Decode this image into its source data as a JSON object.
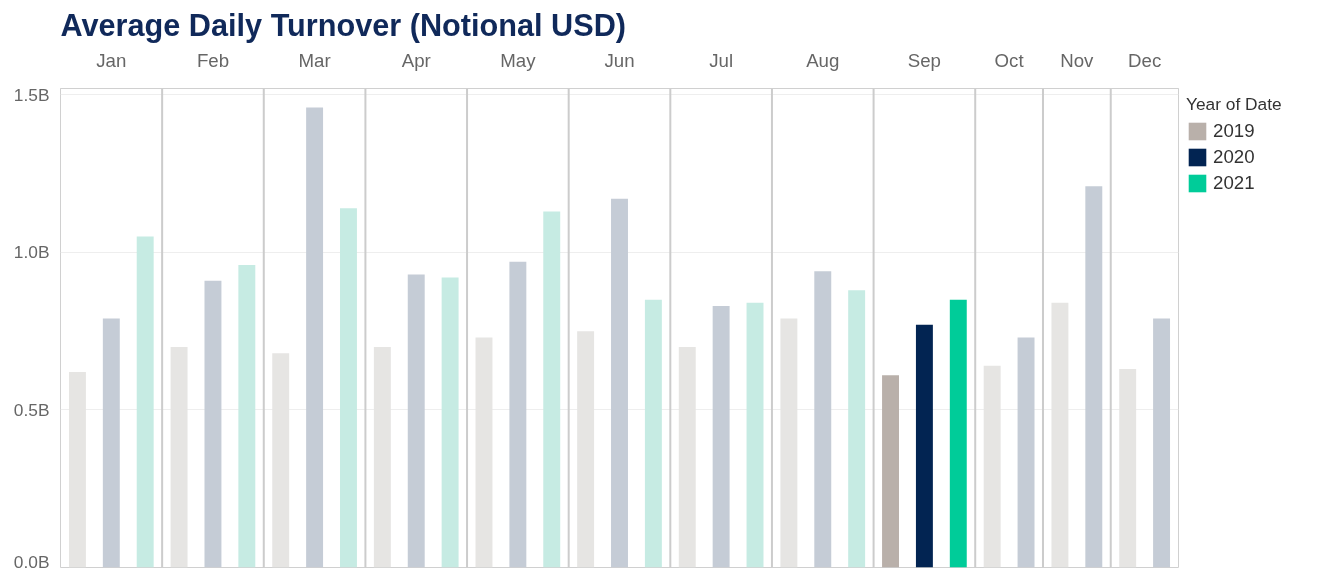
{
  "chart_data": {
    "type": "bar",
    "title": "Average Daily Turnover (Notional USD)",
    "legend_title": "Year of Date",
    "categories": [
      "Jan",
      "Feb",
      "Mar",
      "Apr",
      "May",
      "Jun",
      "Jul",
      "Aug",
      "Sep",
      "Oct",
      "Nov",
      "Dec"
    ],
    "series": [
      {
        "name": "2019",
        "color": "#b9b0aa",
        "values": [
          0.62,
          0.7,
          0.68,
          0.7,
          0.73,
          0.75,
          0.7,
          0.79,
          0.61,
          0.64,
          0.84,
          0.63
        ],
        "colors": [
          "#e6e5e3",
          "#e6e5e3",
          "#e6e5e3",
          "#e6e5e3",
          "#e6e5e3",
          "#e6e5e3",
          "#e6e5e3",
          "#e6e5e3",
          "#b9b0aa",
          "#e6e5e3",
          "#e6e5e3",
          "#e6e5e3"
        ]
      },
      {
        "name": "2020",
        "color": "#022452",
        "values": [
          0.79,
          0.91,
          1.46,
          0.93,
          0.97,
          1.17,
          0.83,
          0.94,
          0.77,
          0.73,
          1.21,
          0.79
        ],
        "colors": [
          "#c5ccd6",
          "#c5ccd6",
          "#c5ccd6",
          "#c5ccd6",
          "#c5ccd6",
          "#c5ccd6",
          "#c5ccd6",
          "#c5ccd6",
          "#022452",
          "#c5ccd6",
          "#c5ccd6",
          "#c5ccd6"
        ]
      },
      {
        "name": "2021",
        "color": "#00cc99",
        "values": [
          1.05,
          0.96,
          1.14,
          0.92,
          1.13,
          0.85,
          0.84,
          0.88,
          0.85,
          null,
          null,
          null
        ],
        "colors": [
          "#c6ebe3",
          "#c6ebe3",
          "#c6ebe3",
          "#c6ebe3",
          "#c6ebe3",
          "#c6ebe3",
          "#c6ebe3",
          "#c6ebe3",
          "#00cc99",
          "#c6ebe3",
          "#c6ebe3",
          "#c6ebe3"
        ]
      }
    ],
    "ylim": [
      0,
      1.52
    ],
    "yticks": [
      {
        "value": 0,
        "label": "0.0B"
      },
      {
        "value": 0.5,
        "label": "0.5B"
      },
      {
        "value": 1.0,
        "label": "1.0B"
      },
      {
        "value": 1.5,
        "label": "1.5B"
      }
    ],
    "grid": "y",
    "legend": "top right"
  }
}
